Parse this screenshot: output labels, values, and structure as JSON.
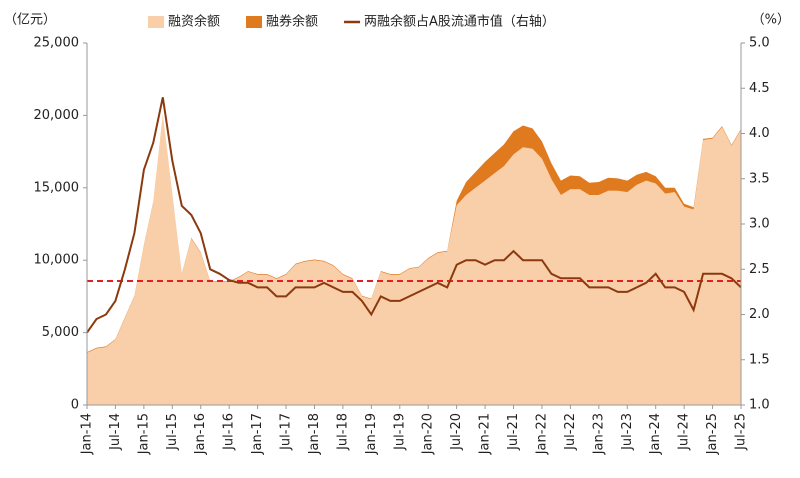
{
  "chart_data": {
    "type": "area",
    "y_label": "（亿元）",
    "y2_label": "（%）",
    "categories": [
      "Jan-14",
      null,
      null,
      "Jul-14",
      null,
      null,
      "Jan-15",
      null,
      null,
      "Jul-15",
      null,
      null,
      "Jan-16",
      null,
      null,
      "Jul-16",
      null,
      null,
      "Jan-17",
      null,
      null,
      "Jul-17",
      null,
      null,
      "Jan-18",
      null,
      null,
      "Jul-18",
      null,
      null,
      "Jan-19",
      null,
      null,
      "Jul-19",
      null,
      null,
      "Jan-20",
      null,
      null,
      "Jul-20",
      null,
      null,
      "Jan-21",
      null,
      null,
      "Jul-21",
      null,
      null,
      "Jan-22",
      null,
      null,
      "Jul-22",
      null,
      null,
      "Jan-23",
      null,
      null,
      "Jul-23",
      null,
      null,
      "Jan-24",
      null,
      null,
      "Jul-24",
      null,
      null,
      "Jan-25",
      null,
      null,
      "Jul-25"
    ],
    "series": [
      {
        "name": "融资余额",
        "type": "area",
        "color": "#f9cfa9",
        "values": [
          3600,
          3900,
          4000,
          4500,
          6000,
          7500,
          11000,
          14000,
          20000,
          14500,
          9000,
          11500,
          10500,
          8500,
          8500,
          8500,
          8800,
          9200,
          9000,
          9000,
          8700,
          9000,
          9700,
          9900,
          10000,
          9900,
          9600,
          9000,
          8700,
          7500,
          7300,
          9200,
          9000,
          9000,
          9400,
          9500,
          10100,
          10500,
          10600,
          13800,
          14500,
          15000,
          15500,
          16000,
          16500,
          17300,
          17800,
          17700,
          17000,
          15600,
          14500,
          14900,
          14900,
          14500,
          14500,
          14800,
          14800,
          14700,
          15200,
          15500,
          15300,
          14600,
          14700,
          13700,
          13500,
          18300,
          18400,
          19200,
          17900,
          19000
        ]
      },
      {
        "name": "融券余额",
        "type": "area",
        "color": "#e07a1f",
        "values": [
          50,
          50,
          50,
          50,
          50,
          50,
          50,
          50,
          50,
          50,
          50,
          50,
          50,
          50,
          50,
          50,
          50,
          50,
          50,
          50,
          50,
          50,
          50,
          50,
          50,
          50,
          50,
          50,
          50,
          50,
          50,
          50,
          50,
          50,
          50,
          50,
          50,
          50,
          50,
          300,
          900,
          1100,
          1300,
          1400,
          1500,
          1600,
          1500,
          1400,
          1200,
          1100,
          1000,
          950,
          900,
          850,
          900,
          900,
          850,
          800,
          700,
          600,
          500,
          400,
          300,
          200,
          150,
          80,
          60,
          60,
          60,
          60
        ]
      },
      {
        "name": "两融余额占A股流通市值（右轴）",
        "type": "line",
        "axis": "y2",
        "color": "#8b3a10",
        "values": [
          1.8,
          1.95,
          2.0,
          2.15,
          2.5,
          2.9,
          3.6,
          3.9,
          4.4,
          3.7,
          3.2,
          3.1,
          2.9,
          2.5,
          2.45,
          2.38,
          2.35,
          2.35,
          2.3,
          2.3,
          2.2,
          2.2,
          2.3,
          2.3,
          2.3,
          2.35,
          2.3,
          2.25,
          2.25,
          2.15,
          2.0,
          2.2,
          2.15,
          2.15,
          2.2,
          2.25,
          2.3,
          2.35,
          2.3,
          2.55,
          2.6,
          2.6,
          2.55,
          2.6,
          2.6,
          2.7,
          2.6,
          2.6,
          2.6,
          2.45,
          2.4,
          2.4,
          2.4,
          2.3,
          2.3,
          2.3,
          2.25,
          2.25,
          2.3,
          2.35,
          2.45,
          2.3,
          2.3,
          2.25,
          2.05,
          2.45,
          2.45,
          2.45,
          2.4,
          2.3
        ]
      }
    ],
    "ylim": [
      0,
      25000
    ],
    "yticks": [
      0,
      {
        "value": 5000,
        "label": "5,000"
      },
      {
        "value": 10000,
        "label": "10,000"
      },
      {
        "value": 15000,
        "label": "15,000"
      },
      {
        "value": 20000,
        "label": "20,000"
      },
      {
        "value": 25000,
        "label": "25,000"
      }
    ],
    "y2lim": [
      1,
      5
    ],
    "y2ticks": [
      {
        "value": 1,
        "label": "1.0"
      },
      1.5,
      {
        "value": 2,
        "label": "2.0"
      },
      2.5,
      {
        "value": 3,
        "label": "3.0"
      },
      3.5,
      {
        "value": 4,
        "label": "4.0"
      },
      4.5,
      {
        "value": 5,
        "label": "5.0"
      }
    ],
    "hline_y2": 2.37,
    "hline_color": "#e02020",
    "grid": false,
    "legend": "top"
  }
}
